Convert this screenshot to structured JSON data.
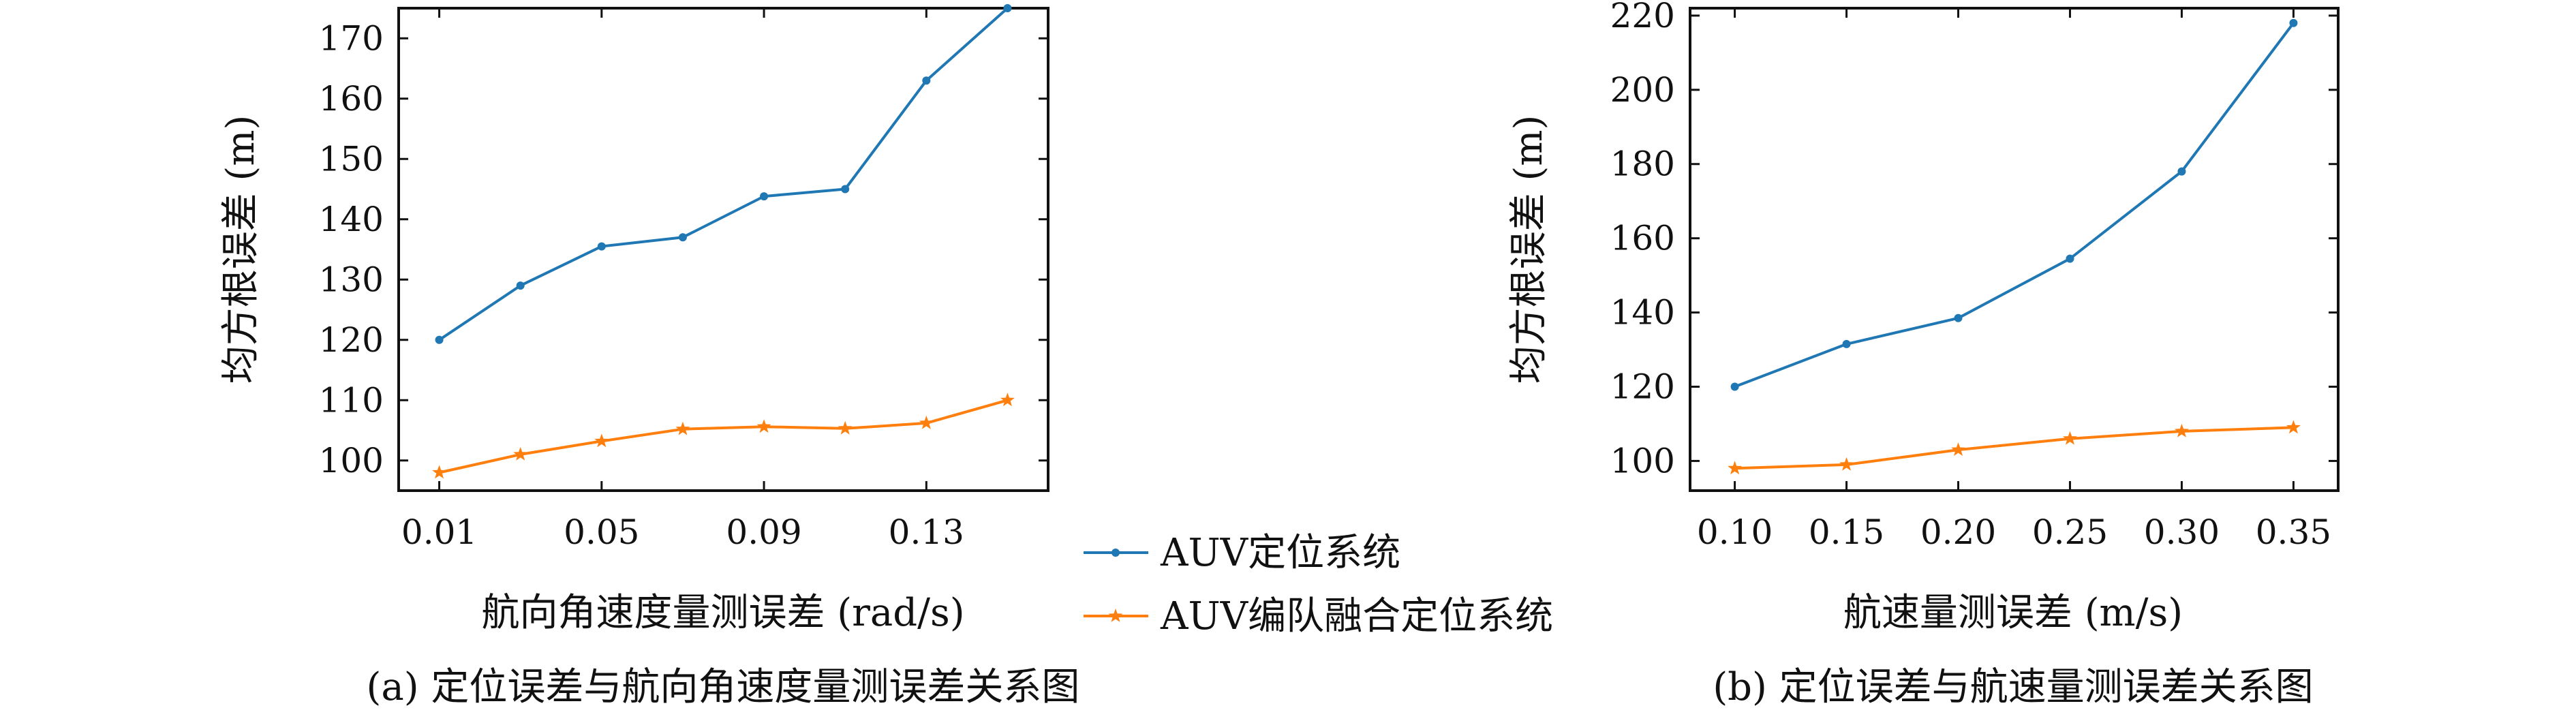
{
  "colors": {
    "blue": "#1f77b4",
    "orange": "#ff7f0e",
    "axis": "#111111"
  },
  "legend": {
    "placement": "center-between-panels",
    "items": [
      {
        "label": "AUV定位系统",
        "color": "#1f77b4",
        "marker": "dot"
      },
      {
        "label": "AUV编队融合定位系统",
        "color": "#ff7f0e",
        "marker": "star"
      }
    ]
  },
  "chart_data": [
    {
      "type": "line",
      "caption": "(a) 定位误差与航向角速度量测误差关系图",
      "xlabel": "航向角速度量测误差 (rad/s)",
      "ylabel": "均方根误差 (m)",
      "xlim": [
        0.0,
        0.16
      ],
      "ylim": [
        95,
        175
      ],
      "xticks": [
        0.01,
        0.05,
        0.09,
        0.13
      ],
      "xtick_labels": [
        "0.01",
        "0.05",
        "0.09",
        "0.13"
      ],
      "yticks": [
        100,
        110,
        120,
        130,
        140,
        150,
        160,
        170
      ],
      "ytick_labels": [
        "100",
        "110",
        "120",
        "130",
        "140",
        "150",
        "160",
        "170"
      ],
      "x": [
        0.01,
        0.03,
        0.05,
        0.07,
        0.09,
        0.11,
        0.13,
        0.15
      ],
      "series": [
        {
          "name": "AUV定位系统",
          "values": [
            120,
            129,
            135.5,
            137,
            143.8,
            145,
            163,
            175
          ]
        },
        {
          "name": "AUV编队融合定位系统",
          "values": [
            98,
            101,
            103.2,
            105.2,
            105.6,
            105.3,
            106.2,
            110
          ]
        }
      ]
    },
    {
      "type": "line",
      "caption": "(b) 定位误差与航速量测误差关系图",
      "xlabel": "航速量测误差 (m/s)",
      "ylabel": "均方根误差 (m)",
      "xlim": [
        0.08,
        0.37
      ],
      "ylim": [
        92,
        222
      ],
      "xticks": [
        0.1,
        0.15,
        0.2,
        0.25,
        0.3,
        0.35
      ],
      "xtick_labels": [
        "0.10",
        "0.15",
        "0.20",
        "0.25",
        "0.30",
        "0.35"
      ],
      "yticks": [
        100,
        120,
        140,
        160,
        180,
        200,
        220
      ],
      "ytick_labels": [
        "100",
        "120",
        "140",
        "160",
        "180",
        "200",
        "220"
      ],
      "x": [
        0.1,
        0.15,
        0.2,
        0.25,
        0.3,
        0.35
      ],
      "series": [
        {
          "name": "AUV定位系统",
          "values": [
            120,
            131.5,
            138.5,
            154.5,
            178,
            218
          ]
        },
        {
          "name": "AUV编队融合定位系统",
          "values": [
            98,
            99,
            103,
            106,
            108,
            109
          ]
        }
      ]
    }
  ]
}
